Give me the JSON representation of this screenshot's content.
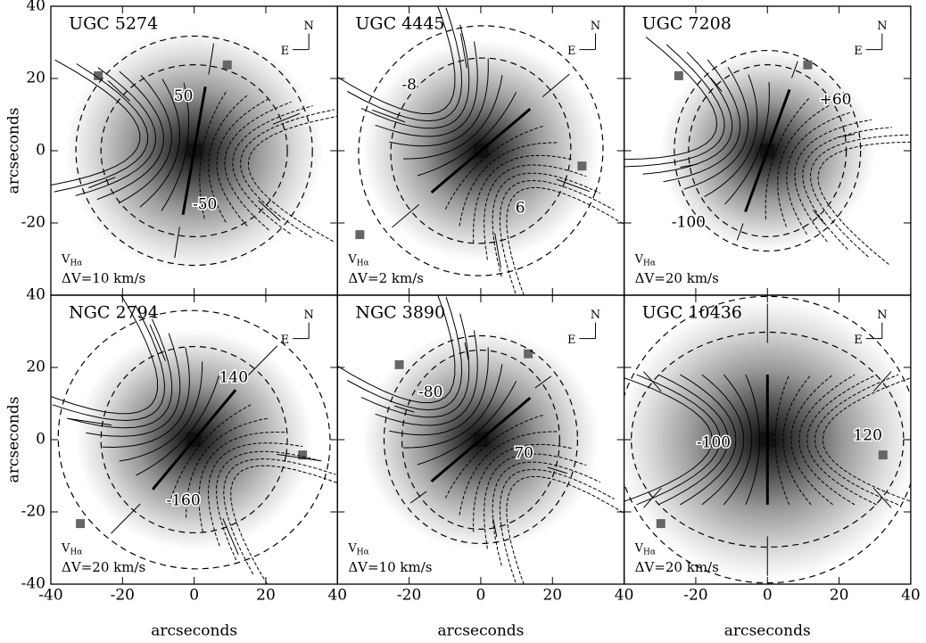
{
  "axes": {
    "xticks": [
      -40,
      -20,
      0,
      20,
      40
    ],
    "yticks": [
      40,
      20,
      0,
      -20,
      -40
    ],
    "x_label": "arcseconds",
    "y_label": "arcseconds"
  },
  "compass": {
    "north": "N",
    "east": "E"
  },
  "panels": [
    {
      "title": "UGC 5274",
      "v_label": "V",
      "v_sub": "Hα",
      "delta_v": "ΔV=10 km/s",
      "contour_labels": [
        "50",
        "-50"
      ]
    },
    {
      "title": "UGC 4445",
      "v_label": "V",
      "v_sub": "Hα",
      "delta_v": "ΔV=2 km/s",
      "contour_labels": [
        "-8",
        "6"
      ]
    },
    {
      "title": "UGC 7208",
      "v_label": "V",
      "v_sub": "Hα",
      "delta_v": "ΔV=20 km/s",
      "contour_labels": [
        "+60",
        "-100"
      ]
    },
    {
      "title": "NGC 2794",
      "v_label": "V",
      "v_sub": "Hα",
      "delta_v": "ΔV=20 km/s",
      "contour_labels": [
        "140",
        "-160"
      ]
    },
    {
      "title": "NGC 3890",
      "v_label": "V",
      "v_sub": "Hα",
      "delta_v": "ΔV=10 km/s",
      "contour_labels": [
        "-80",
        "70"
      ]
    },
    {
      "title": "UGC 10436",
      "v_label": "V",
      "v_sub": "Hα",
      "delta_v": "ΔV=20 km/s",
      "contour_labels": [
        "-100",
        "120"
      ]
    }
  ]
}
